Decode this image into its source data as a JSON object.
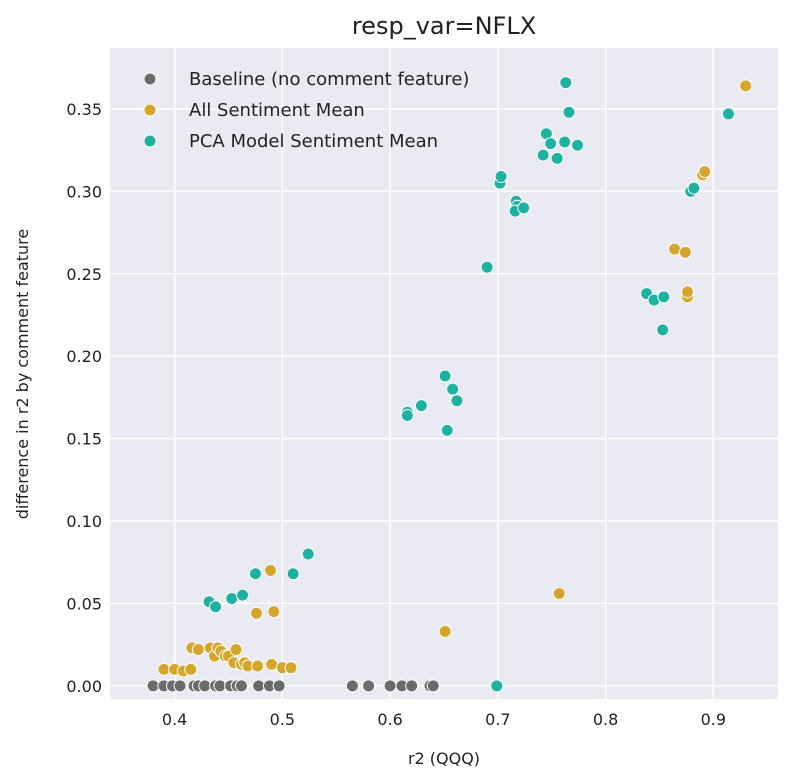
{
  "chart_data": {
    "type": "scatter",
    "title": "resp_var=NFLX",
    "xlabel": "r2 (QQQ)",
    "ylabel": "difference in r2 by comment feature",
    "xlim": [
      0.34,
      0.96
    ],
    "ylim": [
      -0.008,
      0.387
    ],
    "xticks": [
      0.4,
      0.5,
      0.6,
      0.7,
      0.8,
      0.9
    ],
    "xtick_labels": [
      "0.4",
      "0.5",
      "0.6",
      "0.7",
      "0.8",
      "0.9"
    ],
    "yticks": [
      0.0,
      0.05,
      0.1,
      0.15,
      0.2,
      0.25,
      0.3,
      0.35
    ],
    "ytick_labels": [
      "0.00",
      "0.05",
      "0.10",
      "0.15",
      "0.20",
      "0.25",
      "0.30",
      "0.35"
    ],
    "grid": true,
    "legend_position": "top-left",
    "series": [
      {
        "name": "Baseline (no comment feature)",
        "color": "#6b6b6b",
        "points": [
          [
            0.38,
            0.0
          ],
          [
            0.39,
            0.0
          ],
          [
            0.398,
            0.0
          ],
          [
            0.405,
            0.0
          ],
          [
            0.418,
            0.0
          ],
          [
            0.422,
            0.0
          ],
          [
            0.428,
            0.0
          ],
          [
            0.438,
            0.0
          ],
          [
            0.442,
            0.0
          ],
          [
            0.452,
            0.0
          ],
          [
            0.458,
            0.0
          ],
          [
            0.462,
            0.0
          ],
          [
            0.478,
            0.0
          ],
          [
            0.488,
            0.0
          ],
          [
            0.497,
            0.0
          ],
          [
            0.565,
            0.0
          ],
          [
            0.58,
            0.0
          ],
          [
            0.6,
            0.0
          ],
          [
            0.611,
            0.0
          ],
          [
            0.62,
            0.0
          ],
          [
            0.637,
            0.0
          ],
          [
            0.64,
            0.0
          ]
        ]
      },
      {
        "name": "All Sentiment Mean",
        "color": "#d4a72c",
        "points": [
          [
            0.39,
            0.01
          ],
          [
            0.4,
            0.01
          ],
          [
            0.408,
            0.009
          ],
          [
            0.415,
            0.01
          ],
          [
            0.416,
            0.023
          ],
          [
            0.422,
            0.022
          ],
          [
            0.433,
            0.023
          ],
          [
            0.437,
            0.018
          ],
          [
            0.44,
            0.023
          ],
          [
            0.443,
            0.021
          ],
          [
            0.447,
            0.018
          ],
          [
            0.45,
            0.018
          ],
          [
            0.455,
            0.014
          ],
          [
            0.457,
            0.022
          ],
          [
            0.462,
            0.013
          ],
          [
            0.465,
            0.014
          ],
          [
            0.468,
            0.012
          ],
          [
            0.477,
            0.012
          ],
          [
            0.476,
            0.044
          ],
          [
            0.489,
            0.07
          ],
          [
            0.49,
            0.013
          ],
          [
            0.492,
            0.045
          ],
          [
            0.5,
            0.011
          ],
          [
            0.508,
            0.011
          ],
          [
            0.651,
            0.033
          ],
          [
            0.757,
            0.056
          ],
          [
            0.864,
            0.265
          ],
          [
            0.874,
            0.263
          ],
          [
            0.876,
            0.236
          ],
          [
            0.876,
            0.239
          ],
          [
            0.89,
            0.31
          ],
          [
            0.892,
            0.312
          ],
          [
            0.93,
            0.364
          ]
        ]
      },
      {
        "name": "PCA Model Sentiment Mean",
        "color": "#20b2a0",
        "points": [
          [
            0.432,
            0.051
          ],
          [
            0.438,
            0.048
          ],
          [
            0.453,
            0.053
          ],
          [
            0.463,
            0.055
          ],
          [
            0.475,
            0.068
          ],
          [
            0.51,
            0.068
          ],
          [
            0.524,
            0.08
          ],
          [
            0.616,
            0.166
          ],
          [
            0.616,
            0.164
          ],
          [
            0.629,
            0.17
          ],
          [
            0.651,
            0.188
          ],
          [
            0.653,
            0.155
          ],
          [
            0.658,
            0.18
          ],
          [
            0.662,
            0.173
          ],
          [
            0.69,
            0.254
          ],
          [
            0.699,
            0.0
          ],
          [
            0.702,
            0.305
          ],
          [
            0.703,
            0.309
          ],
          [
            0.717,
            0.294
          ],
          [
            0.718,
            0.291
          ],
          [
            0.716,
            0.288
          ],
          [
            0.724,
            0.29
          ],
          [
            0.742,
            0.322
          ],
          [
            0.745,
            0.335
          ],
          [
            0.749,
            0.329
          ],
          [
            0.755,
            0.32
          ],
          [
            0.762,
            0.33
          ],
          [
            0.763,
            0.366
          ],
          [
            0.766,
            0.348
          ],
          [
            0.774,
            0.328
          ],
          [
            0.838,
            0.238
          ],
          [
            0.845,
            0.234
          ],
          [
            0.853,
            0.216
          ],
          [
            0.854,
            0.236
          ],
          [
            0.879,
            0.3
          ],
          [
            0.882,
            0.302
          ],
          [
            0.914,
            0.347
          ]
        ]
      }
    ]
  }
}
